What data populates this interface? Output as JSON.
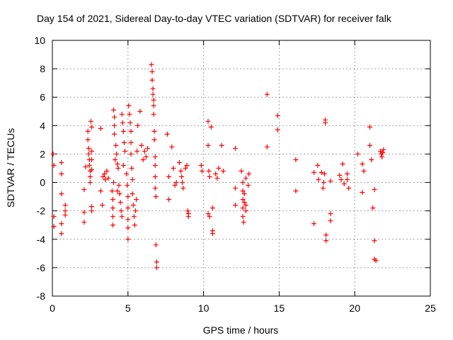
{
  "chart_data": {
    "type": "scatter",
    "title": "Day 154 of 2021, Sidereal Day-to-day VTEC variation (SDTVAR) for receiver falk",
    "xlabel": "GPS time / hours",
    "ylabel": "SDTVAR / TECUs",
    "xlim": [
      0,
      25
    ],
    "ylim": [
      -8,
      10
    ],
    "xticks": [
      0,
      5,
      10,
      15,
      20,
      25
    ],
    "yticks": [
      -8,
      -6,
      -4,
      -2,
      0,
      2,
      4,
      6,
      8,
      10
    ],
    "grid": true,
    "marker": "+",
    "series": [
      {
        "name": "SDTVAR",
        "color": "#ff0000",
        "points": [
          [
            0.05,
            2.0
          ],
          [
            0.1,
            1.2
          ],
          [
            0.1,
            -2.4
          ],
          [
            0.1,
            -3.1
          ],
          [
            0.6,
            1.4
          ],
          [
            0.6,
            0.6
          ],
          [
            0.6,
            -0.8
          ],
          [
            0.6,
            -2.9
          ],
          [
            0.6,
            -3.6
          ],
          [
            0.85,
            -1.6
          ],
          [
            0.85,
            -2.0
          ],
          [
            0.85,
            -2.3
          ],
          [
            2.1,
            -0.5
          ],
          [
            2.1,
            -2.1
          ],
          [
            2.1,
            -2.8
          ],
          [
            2.2,
            1.1
          ],
          [
            2.35,
            3.6
          ],
          [
            2.35,
            3.0
          ],
          [
            2.4,
            2.4
          ],
          [
            2.4,
            2.0
          ],
          [
            2.45,
            1.6
          ],
          [
            2.45,
            1.2
          ],
          [
            2.5,
            0.8
          ],
          [
            2.5,
            0.4
          ],
          [
            2.5,
            0.0
          ],
          [
            2.55,
            4.3
          ],
          [
            2.6,
            3.9
          ],
          [
            2.6,
            2.2
          ],
          [
            2.6,
            1.6
          ],
          [
            2.6,
            0.9
          ],
          [
            2.6,
            -1.7
          ],
          [
            2.6,
            -2.0
          ],
          [
            3.2,
            3.8
          ],
          [
            3.2,
            -0.6
          ],
          [
            3.3,
            -1.6
          ],
          [
            3.35,
            0.4
          ],
          [
            3.45,
            0.6
          ],
          [
            3.5,
            0.2
          ],
          [
            3.6,
            0.8
          ],
          [
            3.7,
            0.3
          ],
          [
            3.95,
            -0.6
          ],
          [
            4.0,
            -1.2
          ],
          [
            4.0,
            -1.8
          ],
          [
            4.0,
            -2.4
          ],
          [
            4.0,
            -3.0
          ],
          [
            4.05,
            0.0
          ],
          [
            4.05,
            5.1
          ],
          [
            4.1,
            4.6
          ],
          [
            4.1,
            4.0
          ],
          [
            4.1,
            3.4
          ],
          [
            4.15,
            1.6
          ],
          [
            4.2,
            2.6
          ],
          [
            4.25,
            2.0
          ],
          [
            4.3,
            1.3
          ],
          [
            4.3,
            -0.6
          ],
          [
            4.35,
            1.0
          ],
          [
            4.4,
            -0.2
          ],
          [
            4.45,
            -0.8
          ],
          [
            4.5,
            -1.4
          ],
          [
            4.55,
            -2.0
          ],
          [
            4.6,
            -2.4
          ],
          [
            4.6,
            4.8
          ],
          [
            4.65,
            4.2
          ],
          [
            4.7,
            3.6
          ],
          [
            4.7,
            1.2
          ],
          [
            4.75,
            2.8
          ],
          [
            4.8,
            2.2
          ],
          [
            4.9,
            0.6
          ],
          [
            4.95,
            -0.2
          ],
          [
            5.0,
            -1.0
          ],
          [
            5.0,
            -1.8
          ],
          [
            5.0,
            -2.6
          ],
          [
            5.0,
            -3.2
          ],
          [
            5.0,
            -4.0
          ],
          [
            5.05,
            5.4
          ],
          [
            5.1,
            4.8
          ],
          [
            5.15,
            4.2
          ],
          [
            5.2,
            3.6
          ],
          [
            5.2,
            2.8
          ],
          [
            5.2,
            2.0
          ],
          [
            5.25,
            1.0
          ],
          [
            5.3,
            0.2
          ],
          [
            5.3,
            -0.8
          ],
          [
            5.35,
            -1.6
          ],
          [
            5.4,
            -2.4
          ],
          [
            5.45,
            -3.0
          ],
          [
            5.5,
            -2.0
          ],
          [
            5.55,
            -1.2
          ],
          [
            5.6,
            2.2
          ],
          [
            5.65,
            4.0
          ],
          [
            5.8,
            5.0
          ],
          [
            5.9,
            2.6
          ],
          [
            6.0,
            1.6
          ],
          [
            6.1,
            2.2
          ],
          [
            6.2,
            1.8
          ],
          [
            6.3,
            2.4
          ],
          [
            6.55,
            8.3
          ],
          [
            6.6,
            7.8
          ],
          [
            6.6,
            7.2
          ],
          [
            6.65,
            6.6
          ],
          [
            6.65,
            6.2
          ],
          [
            6.7,
            5.8
          ],
          [
            6.7,
            5.4
          ],
          [
            6.7,
            4.8
          ],
          [
            6.75,
            3.6
          ],
          [
            6.75,
            3.0
          ],
          [
            6.8,
            1.8
          ],
          [
            6.8,
            1.2
          ],
          [
            6.8,
            0.4
          ],
          [
            6.8,
            -0.4
          ],
          [
            6.85,
            -1.0
          ],
          [
            6.85,
            -4.4
          ],
          [
            6.9,
            -5.6
          ],
          [
            6.9,
            -6.0
          ],
          [
            7.6,
            3.4
          ],
          [
            7.7,
            0.4
          ],
          [
            7.7,
            -1.2
          ],
          [
            7.9,
            2.5
          ],
          [
            8.0,
            1.0
          ],
          [
            8.1,
            -0.2
          ],
          [
            8.2,
            0.0
          ],
          [
            8.4,
            1.4
          ],
          [
            8.5,
            0.8
          ],
          [
            8.55,
            0.4
          ],
          [
            8.6,
            0.0
          ],
          [
            8.65,
            -0.4
          ],
          [
            8.8,
            1.0
          ],
          [
            8.9,
            1.2
          ],
          [
            8.95,
            -2.0
          ],
          [
            9.0,
            -2.2
          ],
          [
            9.0,
            -2.4
          ],
          [
            9.85,
            1.2
          ],
          [
            9.9,
            0.8
          ],
          [
            10.3,
            4.3
          ],
          [
            10.5,
            3.9
          ],
          [
            10.3,
            2.6
          ],
          [
            10.35,
            0.8
          ],
          [
            10.4,
            0.4
          ],
          [
            10.3,
            -2.2
          ],
          [
            10.4,
            -2.4
          ],
          [
            10.6,
            -1.8
          ],
          [
            10.6,
            -3.4
          ],
          [
            10.6,
            -3.6
          ],
          [
            10.8,
            0.6
          ],
          [
            10.9,
            0.3
          ],
          [
            11.0,
            1.0
          ],
          [
            11.2,
            2.6
          ],
          [
            11.3,
            0.8
          ],
          [
            12.1,
            2.4
          ],
          [
            12.1,
            -0.4
          ],
          [
            12.1,
            -1.6
          ],
          [
            12.5,
            0.8
          ],
          [
            12.6,
            0.0
          ],
          [
            12.6,
            -0.6
          ],
          [
            12.6,
            -1.2
          ],
          [
            12.6,
            -1.8
          ],
          [
            12.6,
            -2.4
          ],
          [
            12.65,
            -2.8
          ],
          [
            12.7,
            -0.8
          ],
          [
            12.7,
            -1.4
          ],
          [
            12.8,
            -2.0
          ],
          [
            12.8,
            -1.6
          ],
          [
            12.8,
            0.3
          ],
          [
            12.95,
            -0.2
          ],
          [
            13.0,
            0.6
          ],
          [
            14.2,
            6.2
          ],
          [
            14.2,
            2.5
          ],
          [
            14.9,
            4.7
          ],
          [
            14.9,
            3.7
          ],
          [
            16.1,
            1.6
          ],
          [
            16.1,
            -0.6
          ],
          [
            17.3,
            0.7
          ],
          [
            17.3,
            -2.9
          ],
          [
            17.55,
            1.2
          ],
          [
            17.6,
            0.2
          ],
          [
            17.8,
            0.7
          ],
          [
            17.9,
            -0.4
          ],
          [
            17.95,
            0.0
          ],
          [
            18.0,
            0.6
          ],
          [
            18.05,
            4.4
          ],
          [
            18.05,
            4.2
          ],
          [
            18.1,
            -3.7
          ],
          [
            18.1,
            -4.1
          ],
          [
            18.4,
            0.1
          ],
          [
            18.4,
            -2.2
          ],
          [
            18.4,
            -2.7
          ],
          [
            19.0,
            0.5
          ],
          [
            19.1,
            0.2
          ],
          [
            19.2,
            1.3
          ],
          [
            19.3,
            -0.1
          ],
          [
            19.5,
            0.6
          ],
          [
            19.5,
            0.2
          ],
          [
            19.6,
            -0.4
          ],
          [
            20.2,
            2.0
          ],
          [
            20.5,
            1.3
          ],
          [
            20.5,
            -0.7
          ],
          [
            20.6,
            0.8
          ],
          [
            21.0,
            3.9
          ],
          [
            21.0,
            2.6
          ],
          [
            21.1,
            1.6
          ],
          [
            21.2,
            -1.8
          ],
          [
            21.3,
            -0.5
          ],
          [
            21.3,
            -4.1
          ],
          [
            21.3,
            -5.4
          ],
          [
            21.4,
            -5.5
          ],
          [
            21.7,
            2.2
          ],
          [
            21.75,
            2.0
          ],
          [
            21.8,
            1.8
          ],
          [
            21.85,
            2.1
          ],
          [
            21.9,
            2.3
          ]
        ]
      }
    ]
  }
}
